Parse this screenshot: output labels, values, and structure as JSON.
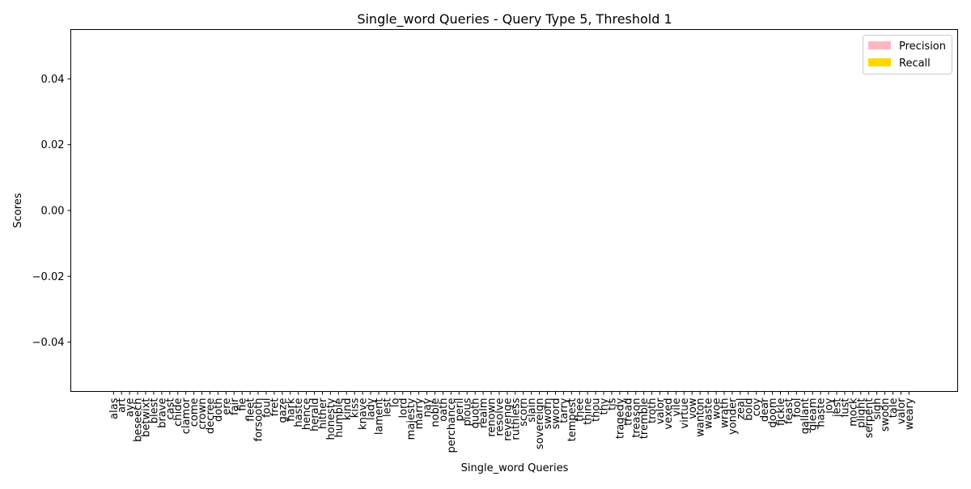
{
  "chart_data": {
    "type": "bar",
    "title": "Single_word Queries - Query Type 5, Threshold 1",
    "xlabel": "Single_word Queries",
    "ylabel": "Scores",
    "ylim": [
      -0.055,
      0.055
    ],
    "yticks": [
      0.04,
      0.02,
      0.0,
      -0.02,
      -0.04
    ],
    "ytick_labels": [
      "0.04",
      "0.02",
      "0.00",
      "−0.02",
      "−0.04"
    ],
    "legend_position": "top-right",
    "grid": false,
    "categories": [
      "alas",
      "art",
      "aye",
      "beseech",
      "betwixt",
      "blest",
      "brave",
      "cast",
      "chide",
      "clamor",
      "come",
      "crown",
      "decree",
      "doth",
      "ere",
      "fair",
      "fie",
      "fleet",
      "forsooth",
      "foul",
      "fret",
      "gaze",
      "hark",
      "haste",
      "hence",
      "herald",
      "hither",
      "honesty",
      "humble",
      "kind",
      "kiss",
      "knave",
      "lady",
      "lament",
      "lest",
      "lo",
      "lord",
      "majesty",
      "marry",
      "nay",
      "noble",
      "oath",
      "perchance",
      "peril",
      "pious",
      "quoth",
      "realm",
      "renown",
      "resolve",
      "revenge",
      "ruthless",
      "scorn",
      "slain",
      "sovereign",
      "sworn",
      "sword",
      "tarry",
      "tempest",
      "thee",
      "thine",
      "thou",
      "thy",
      "tis",
      "tragedy",
      "tread",
      "treason",
      "tremble",
      "troth",
      "valor",
      "vexed",
      "vile",
      "virtue",
      "vow",
      "wanton",
      "waste",
      "woe",
      "wrath",
      "yonder",
      "zeal",
      "bold",
      "coy",
      "dear",
      "doom",
      "fickle",
      "feast",
      "fool",
      "gallant",
      "gleam",
      "haste",
      "joy",
      "jest",
      "lust",
      "mock",
      "plight",
      "serpent",
      "sigh",
      "swoon",
      "tale",
      "valor",
      "weary"
    ],
    "series": [
      {
        "name": "Precision",
        "color": "#ffb6c1",
        "values": [
          0,
          0,
          0,
          0,
          0,
          0,
          0,
          0,
          0,
          0,
          0,
          0,
          0,
          0,
          0,
          0,
          0,
          0,
          0,
          0,
          0,
          0,
          0,
          0,
          0,
          0,
          0,
          0,
          0,
          0,
          0,
          0,
          0,
          0,
          0,
          0,
          0,
          0,
          0,
          0,
          0,
          0,
          0,
          0,
          0,
          0,
          0,
          0,
          0,
          0,
          0,
          0,
          0,
          0,
          0,
          0,
          0,
          0,
          0,
          0,
          0,
          0,
          0,
          0,
          0,
          0,
          0,
          0,
          0,
          0,
          0,
          0,
          0,
          0,
          0,
          0,
          0,
          0,
          0,
          0,
          0,
          0,
          0,
          0,
          0,
          0,
          0,
          0,
          0,
          0,
          0,
          0,
          0,
          0,
          0,
          0,
          0,
          0,
          0,
          0
        ]
      },
      {
        "name": "Recall",
        "color": "#ffd700",
        "values": [
          0,
          0,
          0,
          0,
          0,
          0,
          0,
          0,
          0,
          0,
          0,
          0,
          0,
          0,
          0,
          0,
          0,
          0,
          0,
          0,
          0,
          0,
          0,
          0,
          0,
          0,
          0,
          0,
          0,
          0,
          0,
          0,
          0,
          0,
          0,
          0,
          0,
          0,
          0,
          0,
          0,
          0,
          0,
          0,
          0,
          0,
          0,
          0,
          0,
          0,
          0,
          0,
          0,
          0,
          0,
          0,
          0,
          0,
          0,
          0,
          0,
          0,
          0,
          0,
          0,
          0,
          0,
          0,
          0,
          0,
          0,
          0,
          0,
          0,
          0,
          0,
          0,
          0,
          0,
          0,
          0,
          0,
          0,
          0,
          0,
          0,
          0,
          0,
          0,
          0,
          0,
          0,
          0,
          0,
          0,
          0,
          0,
          0,
          0,
          0
        ]
      }
    ]
  }
}
